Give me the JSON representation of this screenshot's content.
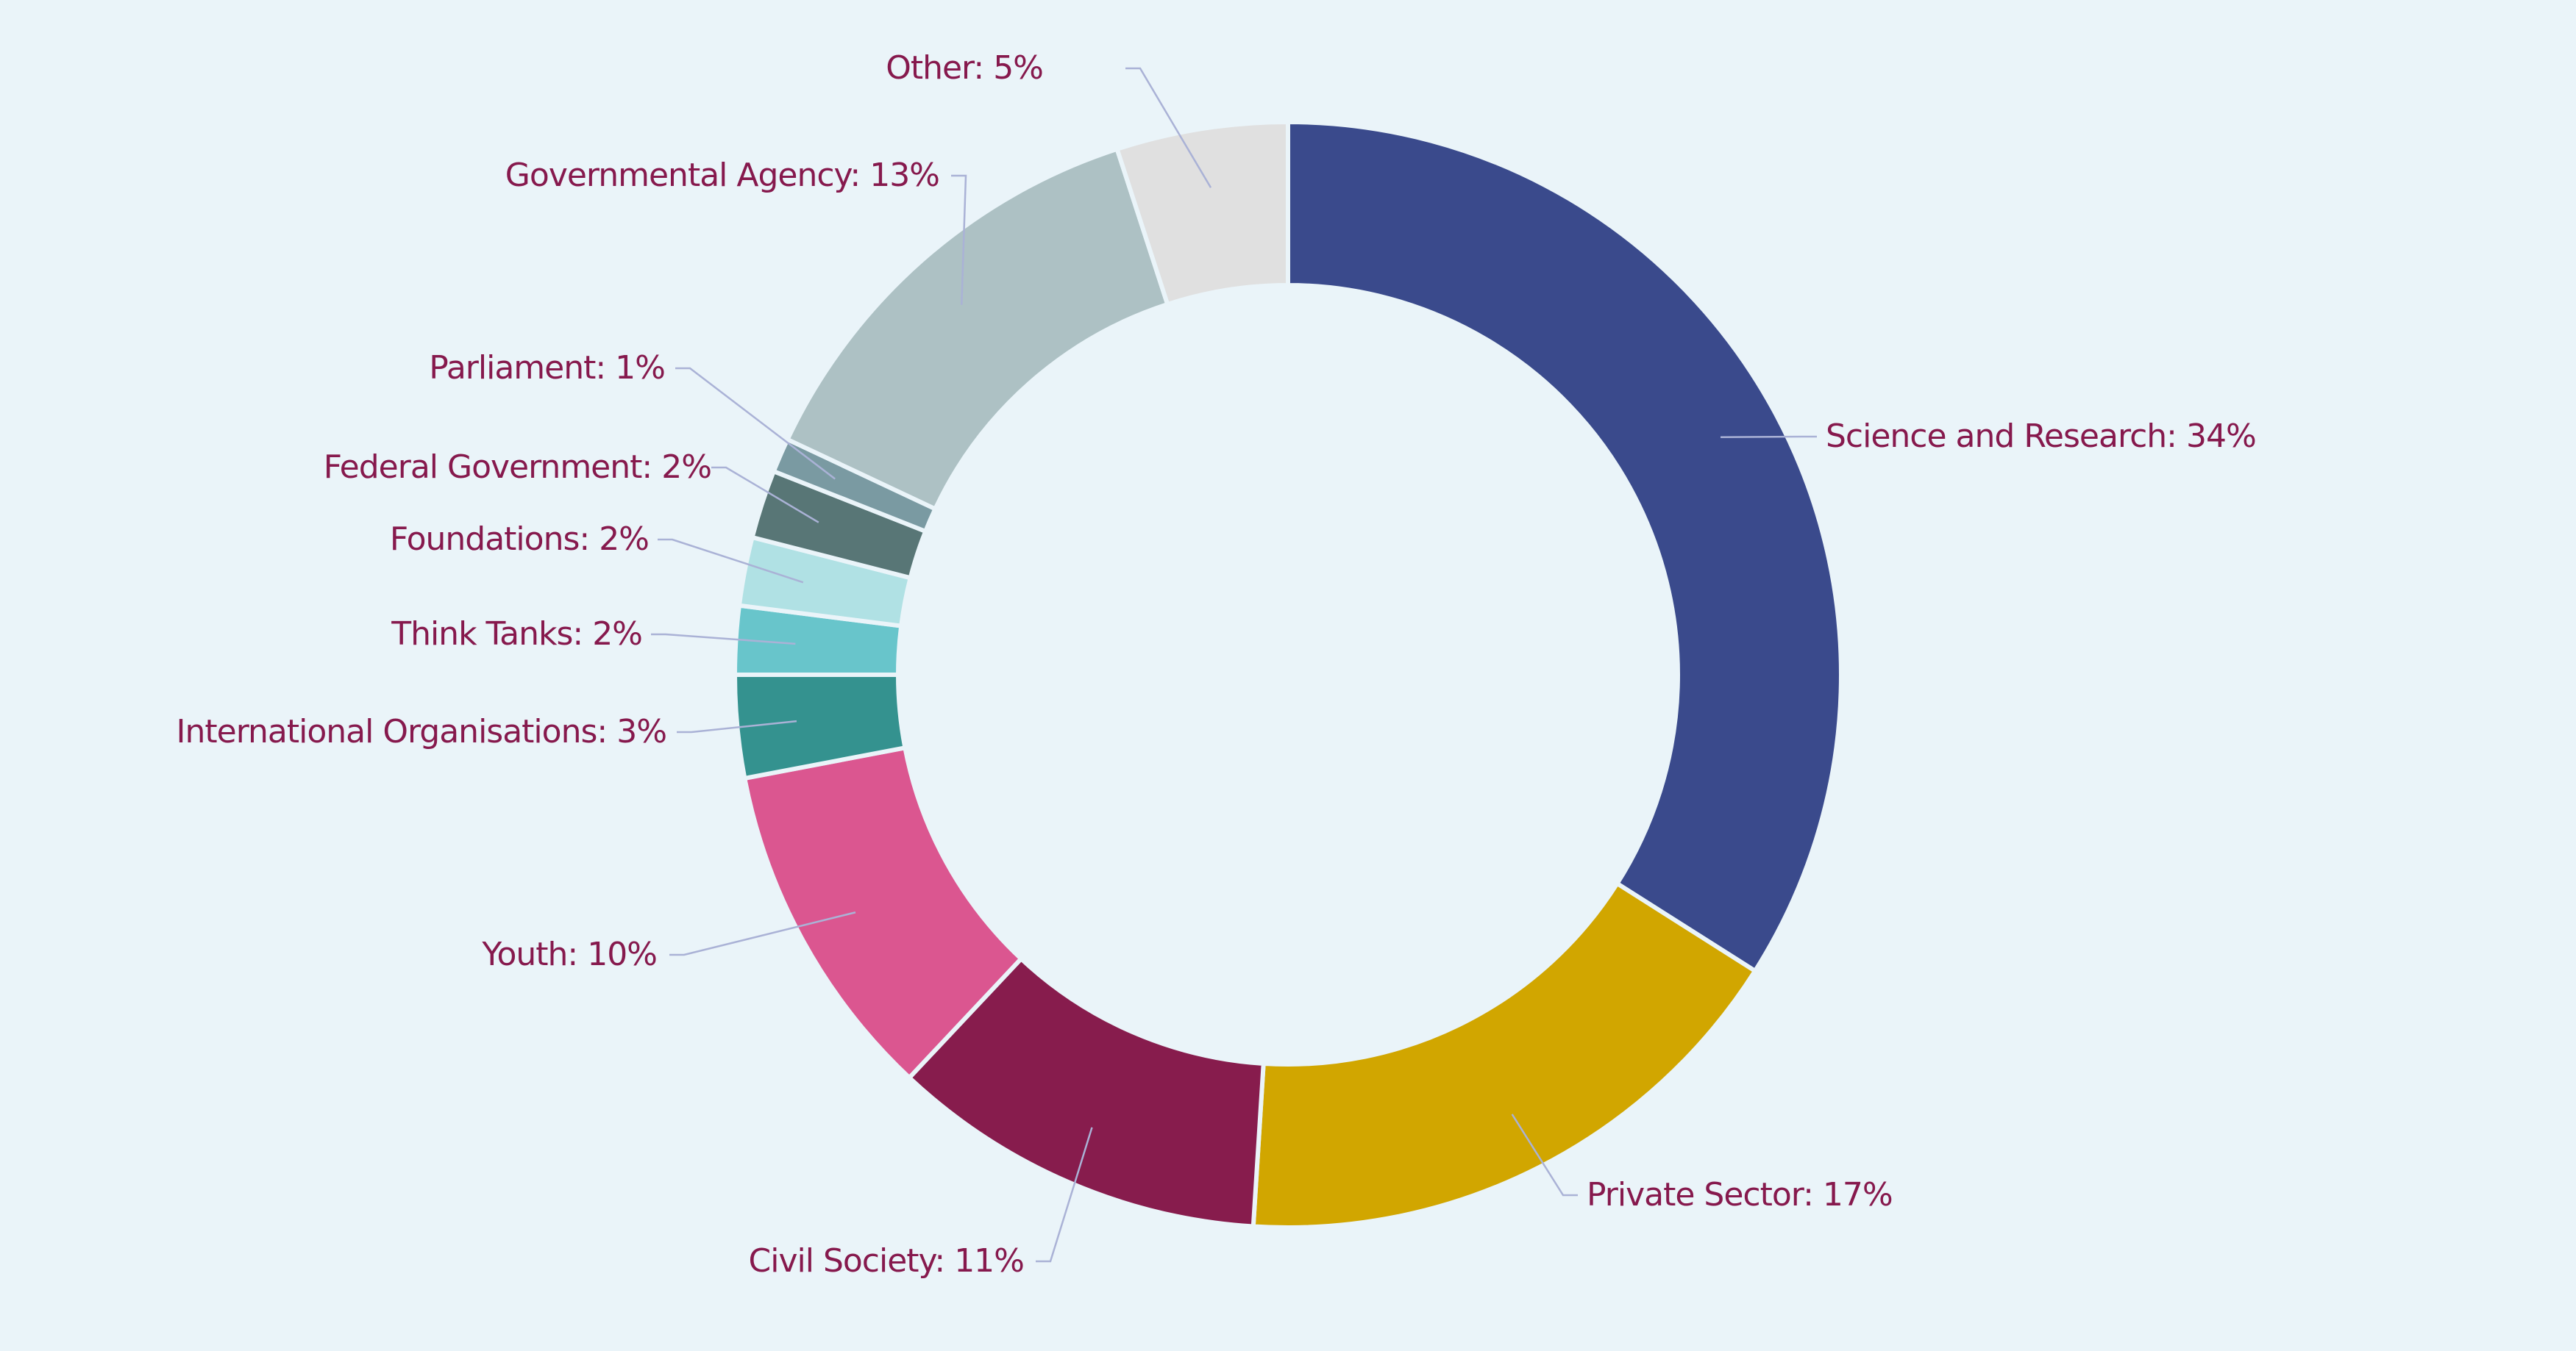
{
  "chart_data": {
    "type": "pie",
    "donut": true,
    "title": "",
    "label_separator": ":  ",
    "start_angle_deg": 0,
    "direction": "clockwise",
    "slices": [
      {
        "label": "Science and Research",
        "value": 34,
        "value_label": "34%",
        "color": "#3a4a8c"
      },
      {
        "label": "Private Sector",
        "value": 17,
        "value_label": "17%",
        "color": "#d1a600"
      },
      {
        "label": "Civil Society",
        "value": 11,
        "value_label": "11%",
        "color": "#871c4d"
      },
      {
        "label": "Youth",
        "value": 10,
        "value_label": "10%",
        "color": "#db5690"
      },
      {
        "label": "International Organisations",
        "value": 3,
        "value_label": "3%",
        "color": "#34928f"
      },
      {
        "label": "Think Tanks",
        "value": 2,
        "value_label": "2%",
        "color": "#68c5cb"
      },
      {
        "label": "Foundations",
        "value": 2,
        "value_label": "2%",
        "color": "#b0e1e4"
      },
      {
        "label": "Federal Government",
        "value": 2,
        "value_label": "2%",
        "color": "#587676"
      },
      {
        "label": "Parliament",
        "value": 1,
        "value_label": "1%",
        "color": "#7a9aa2"
      },
      {
        "label": "Governmental Agency",
        "value": 13,
        "value_label": "13%",
        "color": "#adc1c4"
      },
      {
        "label": "Other",
        "value": 5,
        "value_label": "5%",
        "color": "#e0e0e0"
      }
    ]
  }
}
